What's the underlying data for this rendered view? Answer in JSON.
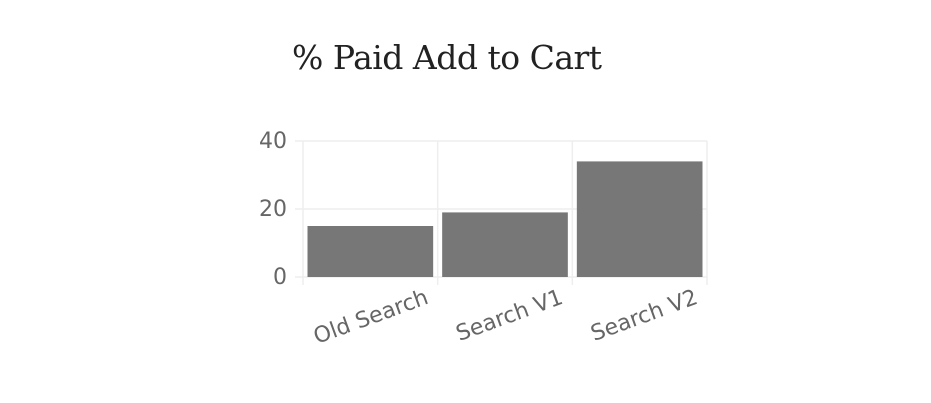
{
  "chart_data": {
    "type": "bar",
    "title": "% Paid Add to Cart",
    "xlabel": "",
    "ylabel": "",
    "categories": [
      "Old Search",
      "Search V1",
      "Search V2"
    ],
    "values": [
      15,
      19,
      34
    ],
    "ylim": [
      0,
      40
    ],
    "yticks": [
      "0",
      "20",
      "40"
    ],
    "grid": true,
    "bar_color": "#777777",
    "grid_color": "#eeeeee"
  }
}
